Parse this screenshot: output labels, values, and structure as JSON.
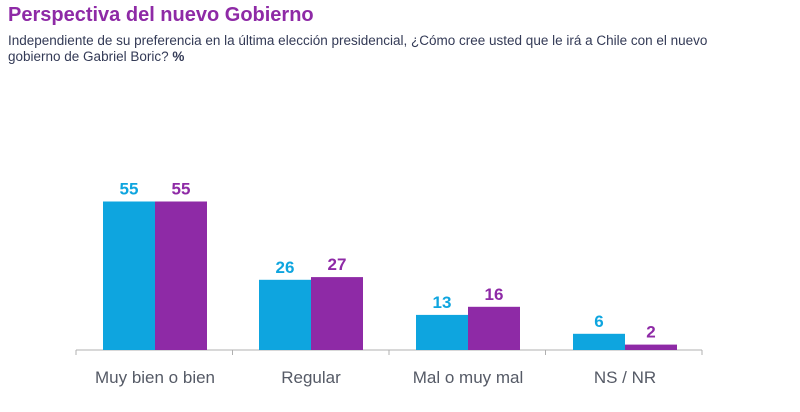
{
  "title": "Perspectiva del nuevo Gobierno",
  "subtitle": "Independiente de su preferencia en la última elección presidencial, ¿Cómo cree usted que le irá a Chile con el nuevo gobierno de Gabriel Boric?",
  "subtitle_unit": "%",
  "colors": {
    "title": "#8e2aa6",
    "series_1": "#0ea5df",
    "series_2": "#8e2aa6",
    "axis": "#b0b0b0"
  },
  "chart_data": {
    "type": "bar",
    "categories": [
      "Muy bien o bien",
      "Regular",
      "Mal o muy mal",
      "NS / NR"
    ],
    "series": [
      {
        "color": "#0ea5df",
        "values": [
          55,
          26,
          13,
          6
        ]
      },
      {
        "color": "#8e2aa6",
        "values": [
          55,
          27,
          16,
          2
        ]
      }
    ],
    "ylim": [
      0,
      60
    ],
    "grid": false,
    "legend": "none",
    "data_labels": true
  }
}
